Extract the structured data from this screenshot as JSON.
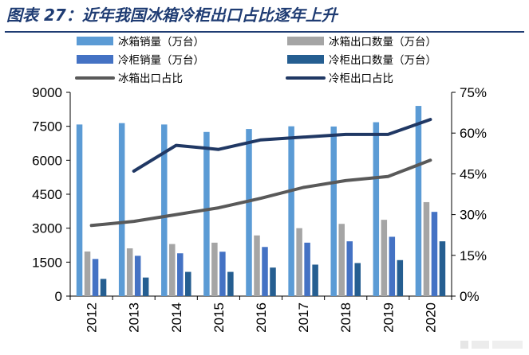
{
  "title": "图表 27：近年我国冰箱冷柜出口占比逐年上升",
  "chart_data": {
    "type": "bar",
    "categories": [
      "2012",
      "2013",
      "2014",
      "2015",
      "2016",
      "2017",
      "2018",
      "2019",
      "2020"
    ],
    "series": [
      {
        "name": "冰箱销量（万台）",
        "type": "bar",
        "axis": "left",
        "color": "#5b9bd5",
        "values": [
          7580,
          7640,
          7580,
          7250,
          7380,
          7500,
          7490,
          7680,
          8400
        ]
      },
      {
        "name": "冰箱出口数量（万台）",
        "type": "bar",
        "axis": "left",
        "color": "#a5a5a5",
        "values": [
          1970,
          2110,
          2300,
          2360,
          2680,
          3000,
          3190,
          3370,
          4150
        ]
      },
      {
        "name": "冷柜销量（万台）",
        "type": "bar",
        "axis": "left",
        "color": "#4472c4",
        "values": [
          1640,
          1780,
          1890,
          1960,
          2170,
          2360,
          2420,
          2620,
          3720
        ]
      },
      {
        "name": "冷柜出口数量（万台）",
        "type": "bar",
        "axis": "left",
        "color": "#255e91",
        "values": [
          760,
          820,
          1070,
          1070,
          1260,
          1390,
          1460,
          1590,
          2420
        ]
      },
      {
        "name": "冰箱出口占比",
        "type": "line",
        "axis": "right",
        "color": "#595959",
        "values": [
          0.26,
          0.275,
          0.3,
          0.325,
          0.36,
          0.4,
          0.425,
          0.44,
          0.5
        ]
      },
      {
        "name": "冷柜出口占比",
        "type": "line",
        "axis": "right",
        "color": "#203864",
        "values": [
          null,
          0.46,
          0.555,
          0.54,
          0.575,
          0.585,
          0.595,
          0.595,
          0.65
        ]
      }
    ],
    "y_left": {
      "min": 0,
      "max": 9000,
      "ticks": [
        "0",
        "1500",
        "3000",
        "4500",
        "6000",
        "7500",
        "9000"
      ]
    },
    "y_right": {
      "min": 0,
      "max": 0.75,
      "ticks": [
        "0%",
        "15%",
        "30%",
        "45%",
        "60%",
        "75%"
      ]
    },
    "legend": "top",
    "grid": false
  }
}
